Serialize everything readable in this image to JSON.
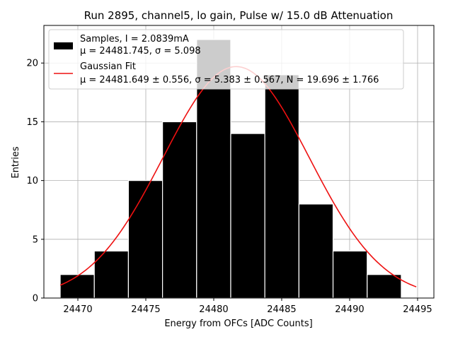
{
  "chart_data": {
    "type": "bar",
    "title": "Run 2895, channel5, lo gain, Pulse w/ 15.0 dB Attenuation",
    "xlabel": "Energy from OFCs [ADC Counts]",
    "ylabel": "Entries",
    "xlim": [
      24467.5,
      24496.2
    ],
    "ylim": [
      0,
      23.2
    ],
    "xticks": [
      24470,
      24475,
      24480,
      24485,
      24490,
      24495
    ],
    "yticks": [
      0,
      5,
      10,
      15,
      20
    ],
    "grid": true,
    "legend_position": "top-left",
    "bins": {
      "edges": [
        24468.7,
        24471.21,
        24473.72,
        24476.23,
        24478.74,
        24481.25,
        24483.76,
        24486.27,
        24488.78,
        24491.29,
        24493.8
      ],
      "counts": [
        2,
        4,
        10,
        15,
        22,
        14,
        19,
        8,
        4,
        2
      ]
    },
    "fit": {
      "mu": 24481.649,
      "sigma": 5.383,
      "N": 19.696,
      "x_range": [
        24468.7,
        24494.9
      ]
    },
    "series": [
      {
        "name": "Samples, I = 2.0839mA",
        "stats": "μ = 24481.745, σ = 5.098",
        "color": "#000000",
        "kind": "histogram"
      },
      {
        "name": "Gaussian Fit",
        "stats": "μ = 24481.649 ± 0.556, σ = 5.383 ± 0.567, N = 19.696 ± 1.766",
        "color": "#ee1111",
        "kind": "line"
      }
    ]
  }
}
